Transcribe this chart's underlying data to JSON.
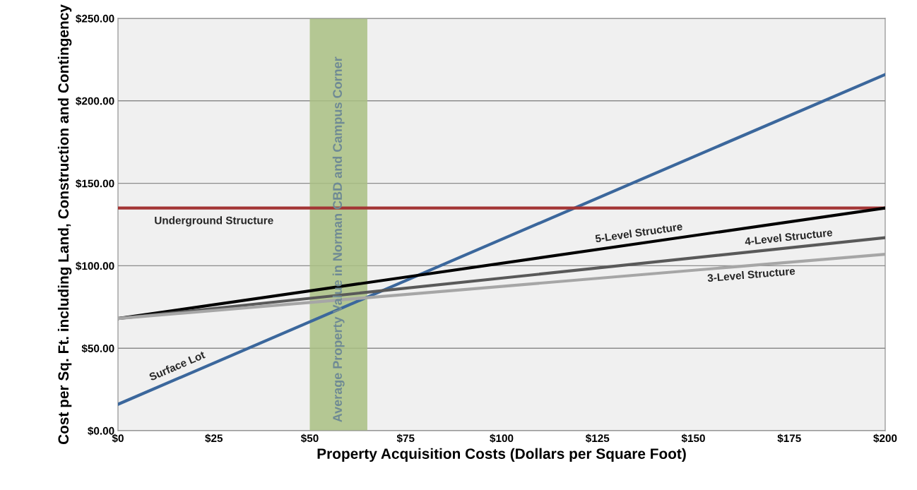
{
  "chart_data": {
    "type": "line",
    "xlabel": "Property Acquisition Costs (Dollars per Square Foot)",
    "ylabel": "Cost per Sq. Ft. including Land, Construction and Contingency",
    "x": [
      0,
      200
    ],
    "series": [
      {
        "name": "Surface Lot",
        "color": "#3b679c",
        "values": [
          16,
          216
        ]
      },
      {
        "name": "Underground Structure",
        "color": "#a33535",
        "values": [
          135,
          135
        ]
      },
      {
        "name": "5-Level Structure",
        "color": "#000000",
        "values": [
          68,
          135
        ]
      },
      {
        "name": "4-Level Structure",
        "color": "#595959",
        "values": [
          68,
          117
        ]
      },
      {
        "name": "3-Level Structure",
        "color": "#a6a6a6",
        "values": [
          68,
          107
        ]
      }
    ],
    "xlim": [
      0,
      200
    ],
    "xticks": [
      {
        "value": 0,
        "label": "$0"
      },
      {
        "value": 25,
        "label": "$25"
      },
      {
        "value": 50,
        "label": "$50"
      },
      {
        "value": 75,
        "label": "$75"
      },
      {
        "value": 100,
        "label": "$100"
      },
      {
        "value": 125,
        "label": "$125"
      },
      {
        "value": 150,
        "label": "$150"
      },
      {
        "value": 175,
        "label": "$175"
      },
      {
        "value": 200,
        "label": "$200"
      }
    ],
    "ylim": [
      0,
      250
    ],
    "yticks": [
      {
        "value": 0,
        "label": "$0.00"
      },
      {
        "value": 50,
        "label": "$50.00"
      },
      {
        "value": 100,
        "label": "$100.00"
      },
      {
        "value": 150,
        "label": "$150.00"
      },
      {
        "value": 200,
        "label": "$200.00"
      },
      {
        "value": 250,
        "label": "$250.00"
      }
    ],
    "bands": [
      {
        "axis": "x",
        "from": 50,
        "to": 65,
        "label": "Average Property Value in Norman CBD and Campus Corner",
        "color": "#a9bf82"
      }
    ],
    "grid": "y",
    "legend": false,
    "marker": "none",
    "line_style": "solid"
  }
}
